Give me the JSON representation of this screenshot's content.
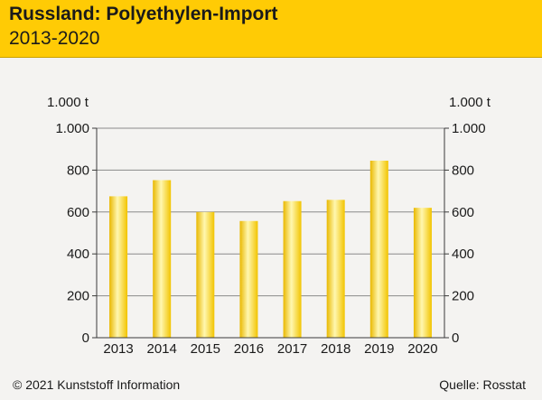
{
  "header": {
    "title": "Russland: Polyethylen-Import",
    "subtitle": "2013-2020"
  },
  "footer": {
    "copyright": "© 2021 Kunststoff Information",
    "source": "Quelle: Rosstat"
  },
  "chart_data": {
    "type": "bar",
    "title": "Russland: Polyethylen-Import",
    "subtitle": "2013-2020",
    "categories": [
      "2013",
      "2014",
      "2015",
      "2016",
      "2017",
      "2018",
      "2019",
      "2020"
    ],
    "values": [
      675,
      752,
      600,
      557,
      652,
      658,
      845,
      620
    ],
    "ylabel_left": "1.000 t",
    "ylabel_right": "1.000 t",
    "ylim": [
      0,
      1000
    ],
    "yticks": [
      0,
      200,
      400,
      600,
      800,
      1000
    ],
    "ytick_labels": [
      "0",
      "200",
      "400",
      "600",
      "800",
      "1.000"
    ],
    "grid": true,
    "colors": {
      "bar_light": "#fff7b0",
      "bar_mid": "#fde35a",
      "bar_dark": "#e9b800",
      "grid": "#8a8a8a",
      "axis": "#3a3a3a"
    }
  }
}
